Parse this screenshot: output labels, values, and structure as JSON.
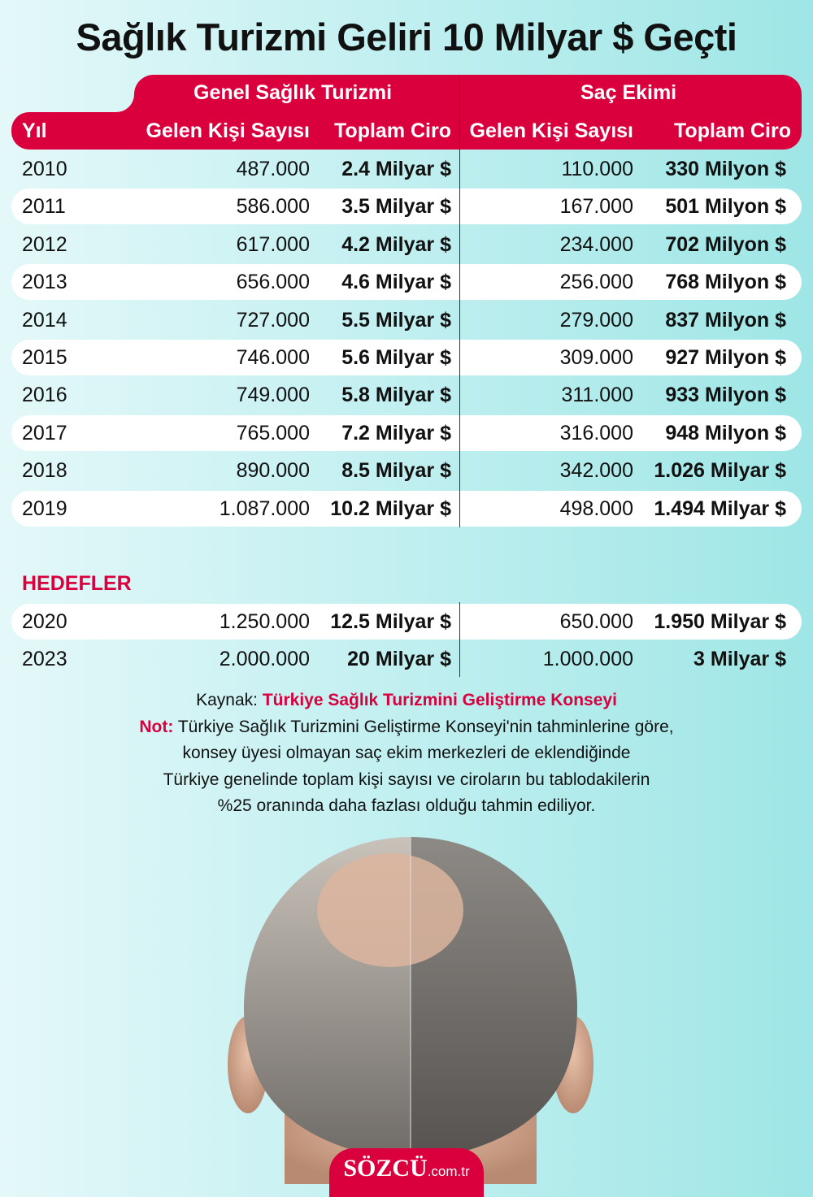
{
  "title": "Sağlık Turizmi Geliri 10 Milyar $ Geçti",
  "colors": {
    "accent": "#d9003d",
    "row_highlight": "#ffffff",
    "background": "#b8eeee"
  },
  "chart_data": {
    "type": "table",
    "group_headers": [
      "Genel Sağlık Turizmi",
      "Saç Ekimi"
    ],
    "columns": [
      "Yıl",
      "Gelen Kişi Sayısı",
      "Toplam Ciro",
      "Gelen Kişi Sayısı",
      "Toplam Ciro"
    ],
    "rows": [
      [
        "2010",
        "487.000",
        "2.4 Milyar $",
        "110.000",
        "330 Milyon $"
      ],
      [
        "2011",
        "586.000",
        "3.5 Milyar $",
        "167.000",
        "501 Milyon $"
      ],
      [
        "2012",
        "617.000",
        "4.2 Milyar $",
        "234.000",
        "702 Milyon $"
      ],
      [
        "2013",
        "656.000",
        "4.6 Milyar $",
        "256.000",
        "768 Milyon $"
      ],
      [
        "2014",
        "727.000",
        "5.5 Milyar $",
        "279.000",
        "837 Milyon $"
      ],
      [
        "2015",
        "746.000",
        "5.6 Milyar $",
        "309.000",
        "927 Milyon $"
      ],
      [
        "2016",
        "749.000",
        "5.8 Milyar $",
        "311.000",
        "933 Milyon $"
      ],
      [
        "2017",
        "765.000",
        "7.2 Milyar $",
        "316.000",
        "948 Milyon $"
      ],
      [
        "2018",
        "890.000",
        "8.5 Milyar $",
        "342.000",
        "1.026 Milyar $"
      ],
      [
        "2019",
        "1.087.000",
        "10.2 Milyar $",
        "498.000",
        "1.494 Milyar $"
      ]
    ],
    "targets_label": "HEDEFLER",
    "target_rows": [
      [
        "2020",
        "1.250.000",
        "12.5 Milyar $",
        "650.000",
        "1.950 Milyar $"
      ],
      [
        "2023",
        "2.000.000",
        "20 Milyar $",
        "1.000.000",
        "3 Milyar $"
      ]
    ]
  },
  "notes": {
    "source_label": "Kaynak:",
    "source": "Türkiye Sağlık Turizmini Geliştirme Konseyi",
    "note_label": "Not:",
    "note_lines": [
      "Türkiye Sağlık Turizmini Geliştirme Konseyi'nin tahminlerine göre,",
      "konsey üyesi olmayan saç ekim merkezleri de eklendiğinde",
      "Türkiye genelinde toplam kişi sayısı ve ciroların bu tablodakilerin",
      "%25 oranında daha fazlası olduğu tahmin ediliyor."
    ]
  },
  "logo": {
    "brand": "SÖZCÜ",
    "domain": ".com.tr"
  }
}
